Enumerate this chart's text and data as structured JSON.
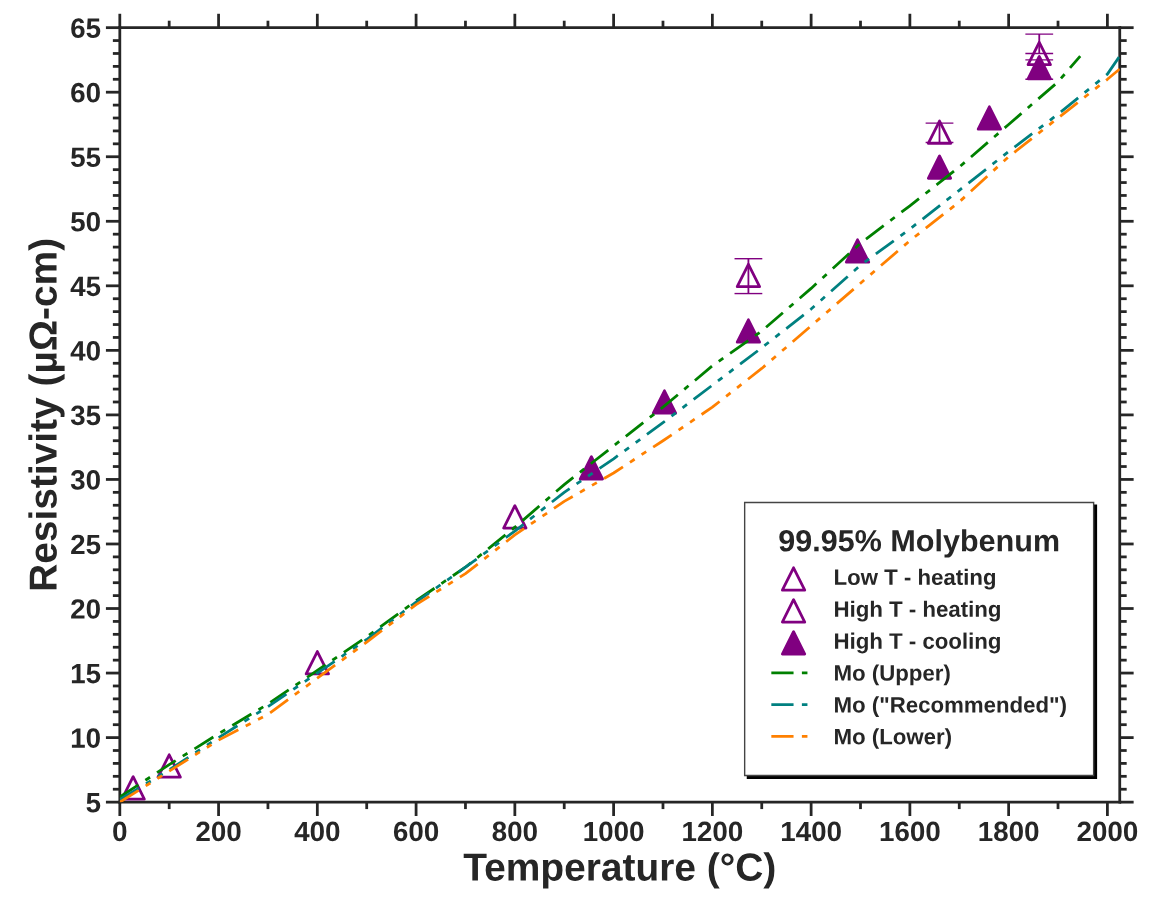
{
  "chart_data": {
    "type": "scatter",
    "xlabel": "Temperature (°C)",
    "ylabel": "Resistivity (µΩ-cm)",
    "legend_title": "99.95% Molybenum",
    "legend": "bottom right",
    "grid": false,
    "xlim": [
      0,
      2025
    ],
    "xticks": [
      0,
      200,
      400,
      600,
      800,
      1000,
      1200,
      1400,
      1600,
      1800,
      2000
    ],
    "ylim": [
      5,
      65
    ],
    "yticks": [
      5,
      10,
      15,
      20,
      25,
      30,
      35,
      40,
      45,
      50,
      55,
      60,
      65
    ],
    "series": [
      {
        "name": "Low T - heating",
        "marker": "triangle open",
        "color": "#800080",
        "x": [
          27,
          100,
          400,
          800
        ],
        "values": [
          6.1,
          7.8,
          15.8,
          27.1
        ]
      },
      {
        "name": "High T - heating",
        "marker": "triangle open",
        "color": "#800080",
        "x": [
          1273,
          1660,
          1862
        ],
        "values": [
          45.8,
          56.9,
          63.0
        ],
        "errors": [
          [
            44.4,
            47.1
          ],
          [
            56.1,
            57.6
          ],
          [
            63.0,
            64.5
          ]
        ]
      },
      {
        "name": "High T - cooling",
        "marker": "triangle",
        "color": "#800080",
        "x": [
          955,
          1103,
          1273,
          1494,
          1660,
          1761,
          1862
        ],
        "values": [
          30.9,
          36.0,
          41.5,
          47.7,
          54.2,
          58.0,
          61.9
        ],
        "errors": [
          null,
          null,
          null,
          null,
          null,
          null,
          [
            61.0,
            62.5
          ]
        ]
      },
      {
        "name": "Mo (Upper)",
        "type": "line",
        "line_style": "dashdot",
        "color": "#008000",
        "x": [
          0,
          100,
          200,
          300,
          400,
          500,
          600,
          700,
          800,
          900,
          1000,
          1100,
          1200,
          1300,
          1400,
          1500,
          1600,
          1700,
          1800,
          1900,
          1945
        ],
        "values": [
          5.4,
          7.9,
          10.3,
          12.6,
          15.2,
          17.8,
          20.6,
          23.2,
          26.3,
          29.6,
          32.6,
          35.6,
          38.8,
          41.5,
          44.8,
          48.3,
          51.2,
          54.2,
          57.5,
          60.8,
          62.8
        ]
      },
      {
        "name": "Mo (\"Recommended\")",
        "type": "line",
        "line_style": "dashdotdot",
        "color": "#008080",
        "x": [
          0,
          100,
          200,
          300,
          400,
          500,
          600,
          700,
          800,
          900,
          1000,
          1100,
          1200,
          1300,
          1400,
          1500,
          1600,
          1700,
          1800,
          1900,
          2000,
          2025
        ],
        "values": [
          5.2,
          7.5,
          10.0,
          12.4,
          15.0,
          17.6,
          20.5,
          23.2,
          26.0,
          29.0,
          31.6,
          34.4,
          37.3,
          40.2,
          43.2,
          46.6,
          49.4,
          52.4,
          55.4,
          58.3,
          61.4,
          62.8
        ]
      },
      {
        "name": "Mo (Lower)",
        "type": "line",
        "line_style": "dashdotdot",
        "color": "#ff8000",
        "x": [
          0,
          100,
          200,
          300,
          400,
          500,
          600,
          700,
          800,
          900,
          1000,
          1100,
          1200,
          1300,
          1400,
          1500,
          1600,
          1700,
          1800,
          1900,
          2000,
          2025
        ],
        "values": [
          5.0,
          7.4,
          9.8,
          11.8,
          14.6,
          17.4,
          20.3,
          22.7,
          25.7,
          28.3,
          30.5,
          33.0,
          35.6,
          38.6,
          41.9,
          45.2,
          48.5,
          51.5,
          55.0,
          58.0,
          61.0,
          61.8
        ]
      }
    ]
  }
}
